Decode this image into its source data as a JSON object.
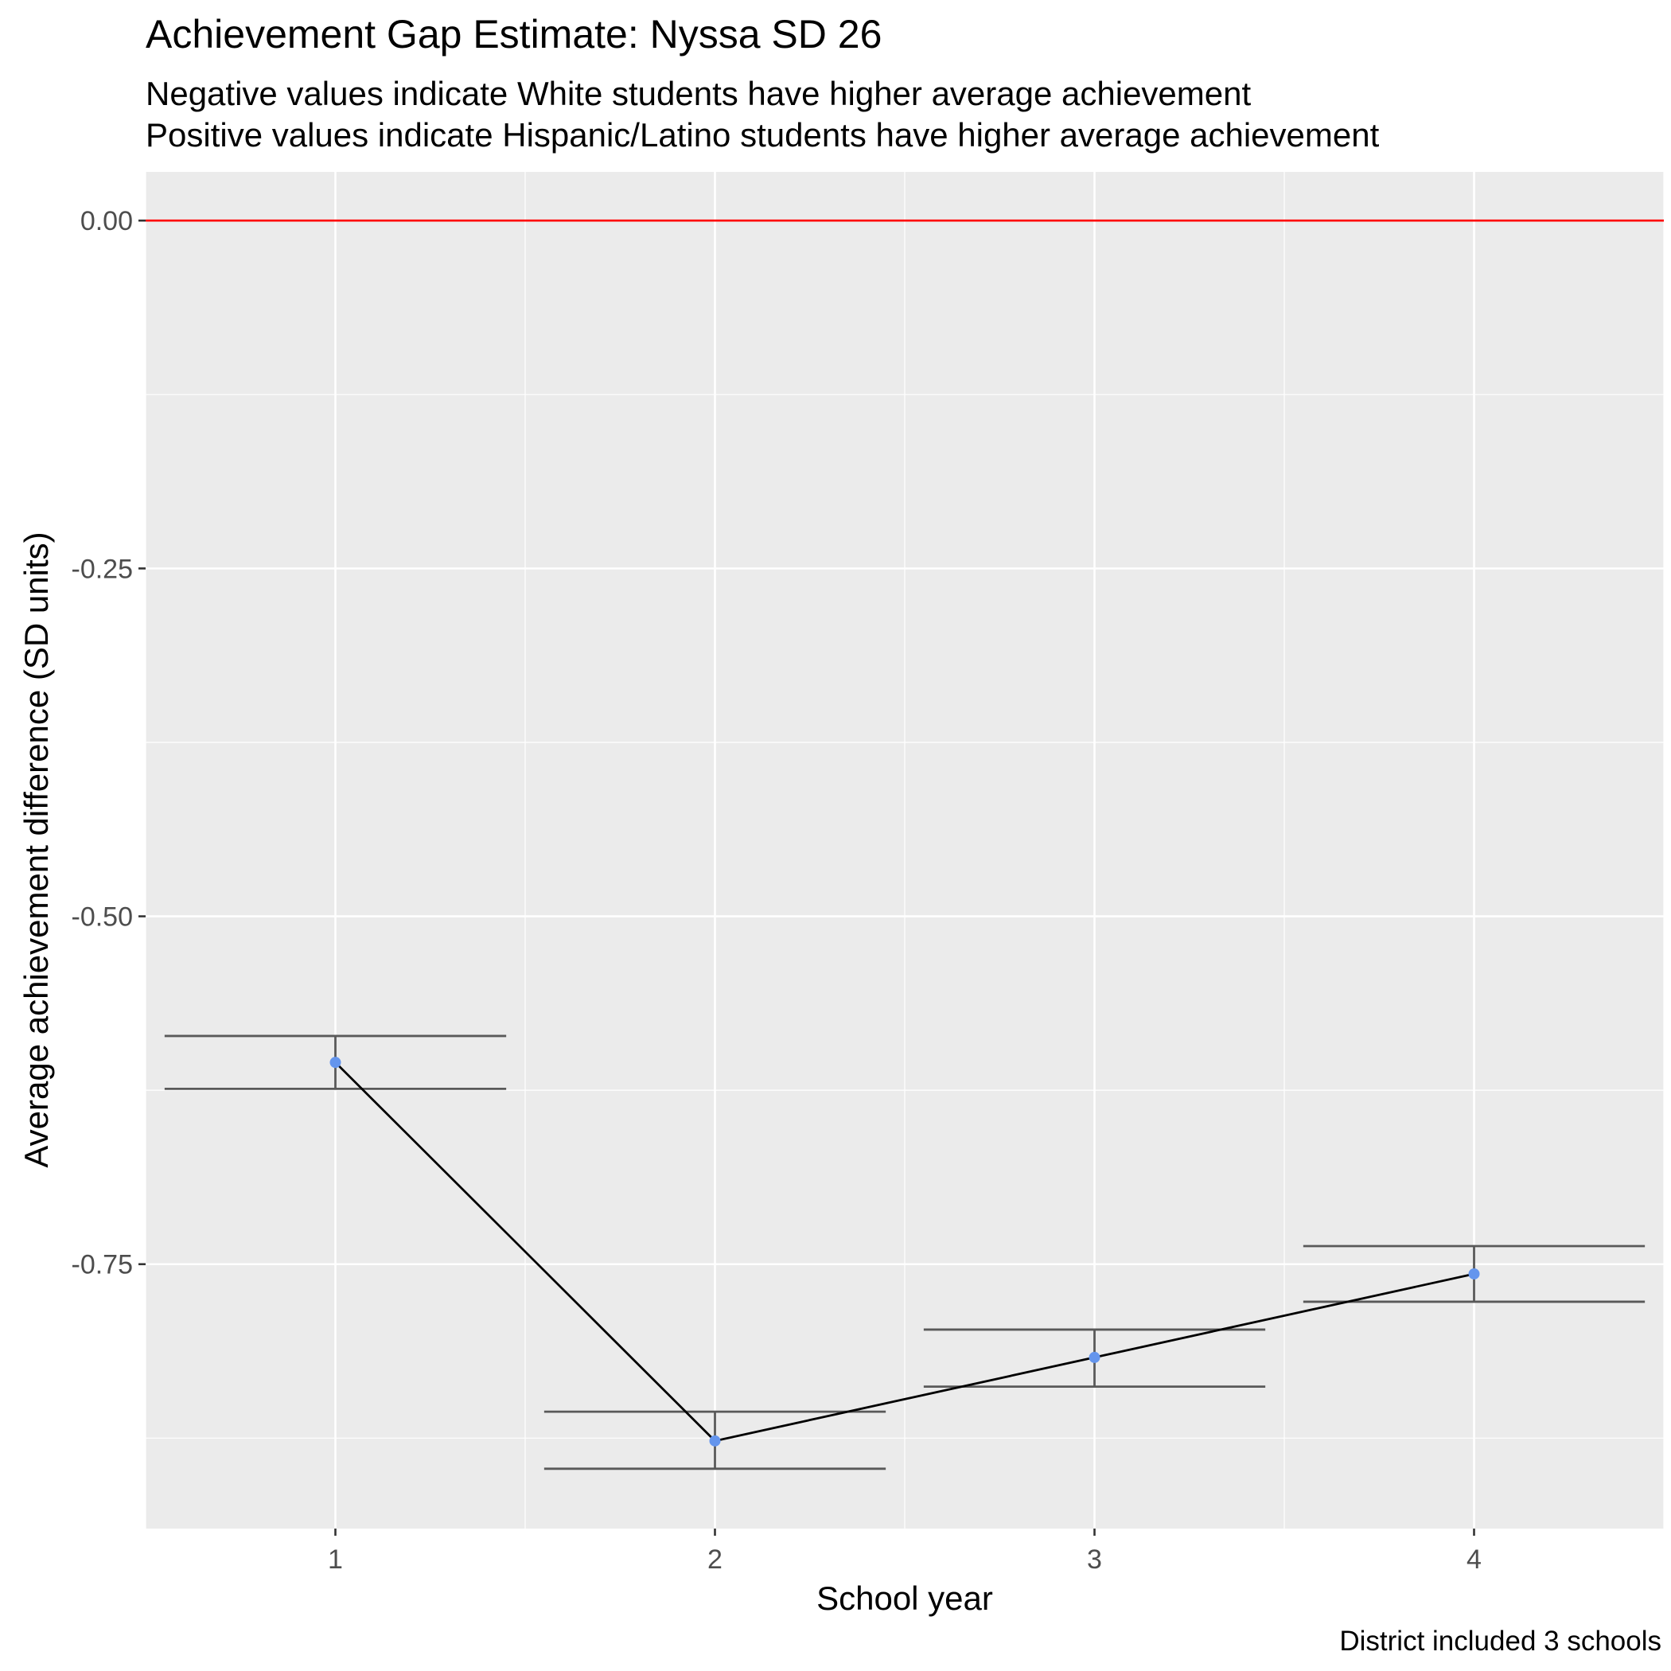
{
  "chart_data": {
    "type": "line",
    "title": "Achievement Gap Estimate: Nyssa SD 26",
    "subtitle_lines": [
      "Negative values indicate White students have higher average achievement",
      "Positive values indicate Hispanic/Latino students have higher average achievement"
    ],
    "xlabel": "School year",
    "ylabel": "Average achievement difference (SD units)",
    "caption": "District included 3 schools",
    "x": [
      1,
      2,
      3,
      4
    ],
    "x_tick_labels": [
      "1",
      "2",
      "3",
      "4"
    ],
    "xlim": [
      0.5,
      4.5
    ],
    "y_ticks": [
      0.0,
      -0.25,
      -0.5,
      -0.75
    ],
    "y_tick_labels": [
      "0.00",
      "-0.25",
      "-0.50",
      "-0.75"
    ],
    "ylim": [
      -0.94,
      0.035
    ],
    "series": [
      {
        "values": [
          -0.605,
          -0.877,
          -0.817,
          -0.757
        ],
        "error_low": [
          -0.624,
          -0.897,
          -0.838,
          -0.777
        ],
        "error_high": [
          -0.586,
          -0.856,
          -0.797,
          -0.737
        ]
      }
    ],
    "reference_line": {
      "y": 0.0,
      "color": "#ff0000"
    },
    "colors": {
      "panel_background": "#ebebeb",
      "grid": "#ffffff",
      "point": "#6495ed",
      "line": "#000000",
      "errorbar": "#595959"
    },
    "grid": true,
    "legend": "none"
  }
}
